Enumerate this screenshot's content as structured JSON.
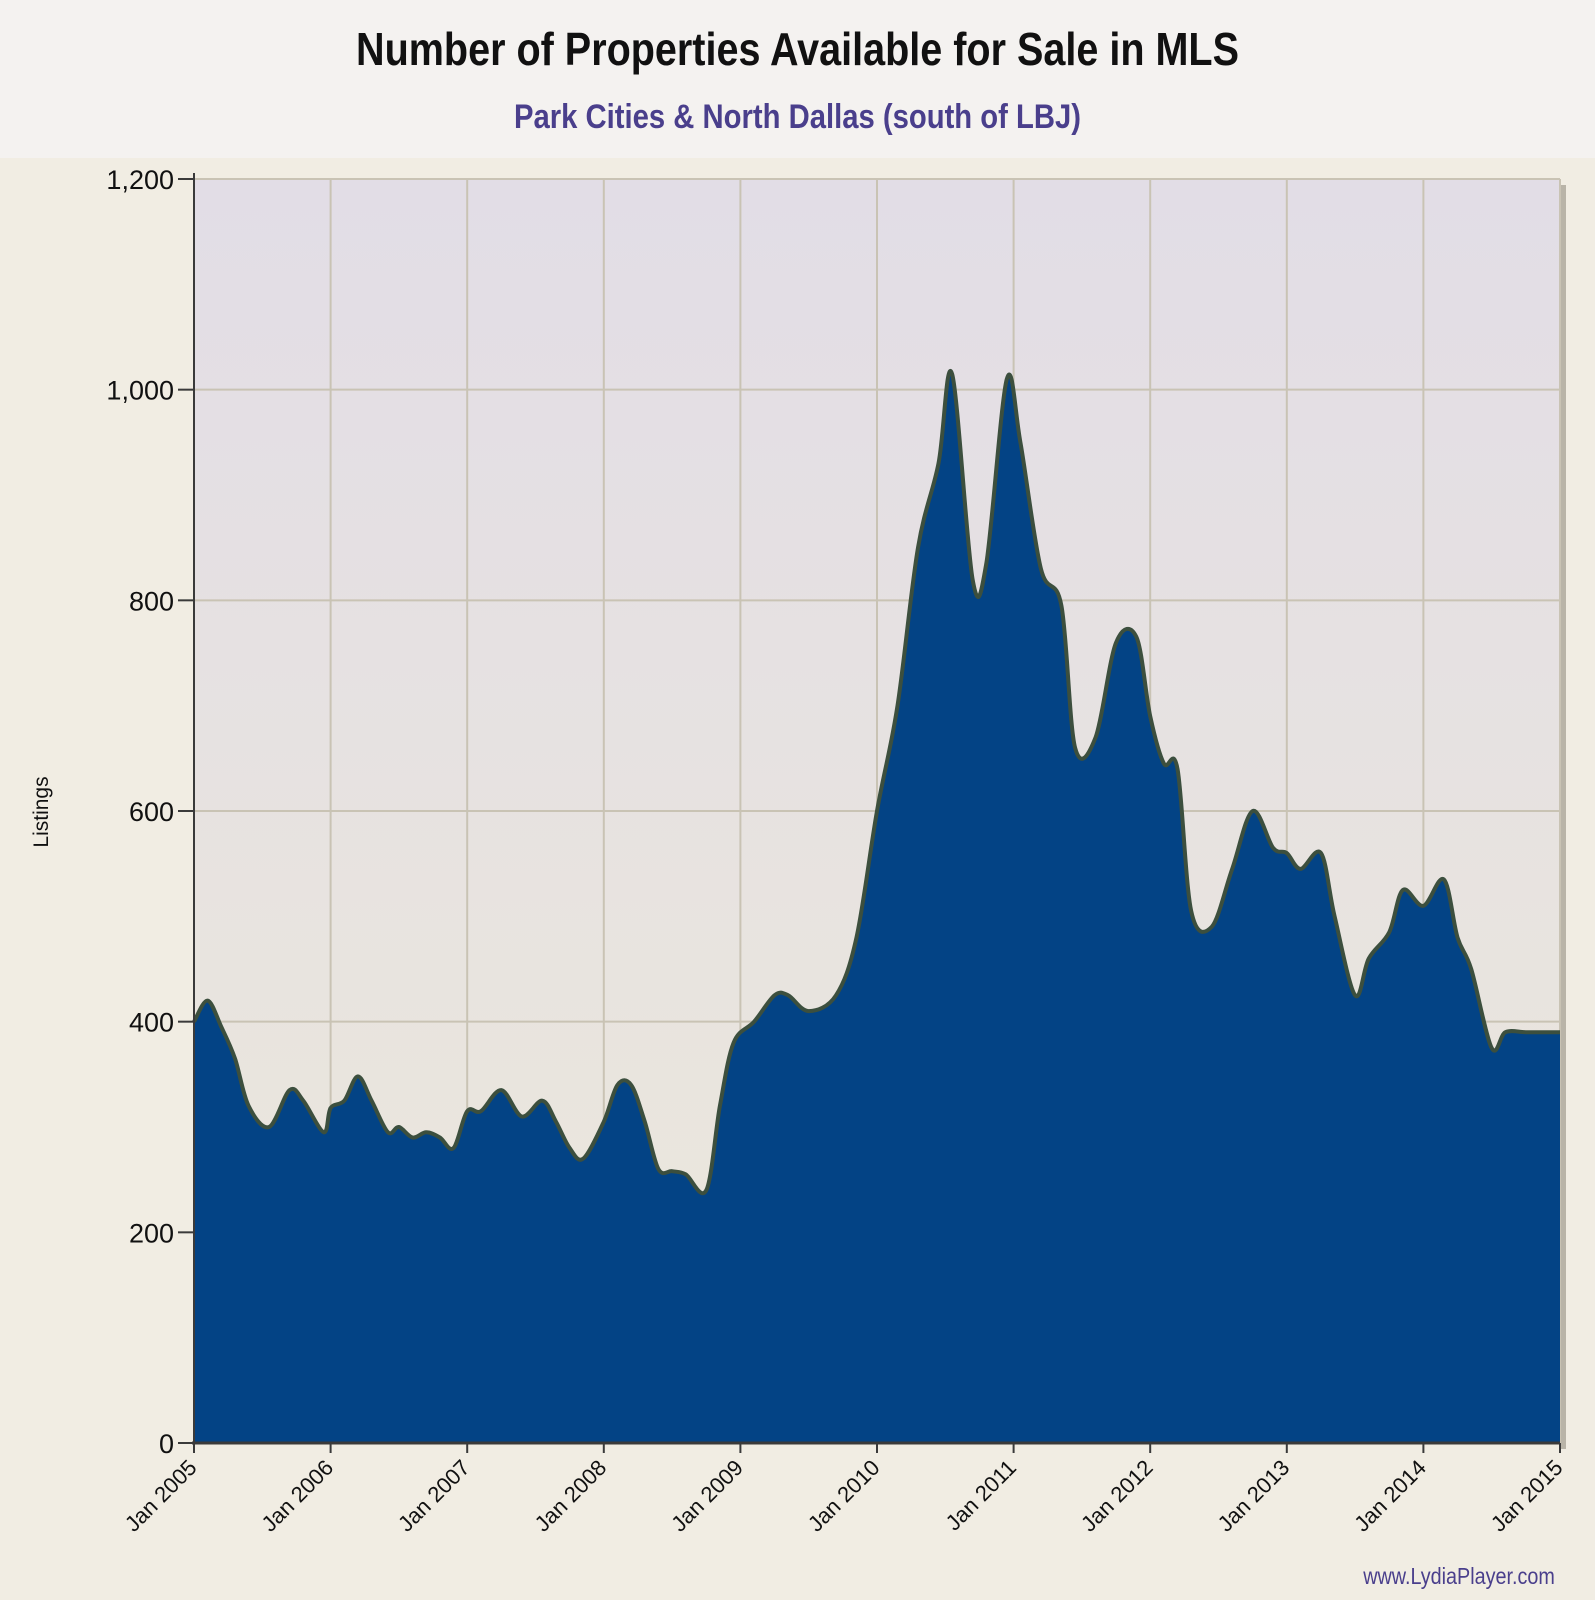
{
  "chart_data": {
    "type": "area",
    "title": "Number of Properties Available for Sale in MLS",
    "subtitle": "Park Cities & North Dallas (south of LBJ)",
    "ylabel": "Listings",
    "xlabel": "",
    "ylim": [
      0,
      1200
    ],
    "xlim": [
      2005.0,
      2015.0
    ],
    "y_ticks": [
      0,
      200,
      400,
      600,
      800,
      1000,
      1200
    ],
    "y_tick_labels": [
      "0",
      "200",
      "400",
      "600",
      "800",
      "1,000",
      "1,200"
    ],
    "x_tick_labels": [
      "Jan 2005",
      "Jan 2006",
      "Jan 2007",
      "Jan 2008",
      "Jan 2009",
      "Jan 2010",
      "Jan 2011",
      "Jan 2012",
      "Jan 2013",
      "Jan 2014",
      "Jan 2015"
    ],
    "x_tick_values": [
      2005,
      2006,
      2007,
      2008,
      2009,
      2010,
      2011,
      2012,
      2013,
      2014,
      2015
    ],
    "grid": true,
    "legend": "none",
    "colors": {
      "fill": "#034385",
      "line": "#3c4f3e",
      "plot_bg_top": "#e2dde6",
      "plot_bg_bottom": "#ece8db",
      "grid": "#c9c3b4"
    },
    "x": [
      2005.0,
      2005.1,
      2005.2,
      2005.3,
      2005.4,
      2005.55,
      2005.7,
      2005.8,
      2005.95,
      2006.0,
      2006.1,
      2006.2,
      2006.3,
      2006.42,
      2006.5,
      2006.6,
      2006.7,
      2006.8,
      2006.9,
      2007.0,
      2007.1,
      2007.25,
      2007.4,
      2007.55,
      2007.65,
      2007.75,
      2007.85,
      2008.0,
      2008.1,
      2008.2,
      2008.3,
      2008.4,
      2008.5,
      2008.6,
      2008.75,
      2008.85,
      2008.95,
      2009.1,
      2009.25,
      2009.35,
      2009.5,
      2009.7,
      2009.85,
      2010.0,
      2010.15,
      2010.3,
      2010.45,
      2010.55,
      2010.7,
      2010.8,
      2010.95,
      2011.05,
      2011.2,
      2011.35,
      2011.45,
      2011.6,
      2011.75,
      2011.9,
      2012.0,
      2012.1,
      2012.2,
      2012.3,
      2012.45,
      2012.6,
      2012.75,
      2012.9,
      2013.0,
      2013.1,
      2013.25,
      2013.35,
      2013.5,
      2013.6,
      2013.75,
      2013.85,
      2014.0,
      2014.15,
      2014.25,
      2014.35,
      2014.5,
      2014.6,
      2014.75,
      2014.9,
      2015.0
    ],
    "values": [
      400,
      420,
      395,
      365,
      320,
      300,
      335,
      325,
      295,
      318,
      325,
      348,
      325,
      295,
      300,
      290,
      295,
      290,
      280,
      315,
      315,
      335,
      310,
      325,
      305,
      280,
      270,
      305,
      340,
      340,
      305,
      260,
      258,
      255,
      240,
      320,
      380,
      400,
      425,
      425,
      410,
      425,
      480,
      600,
      700,
      850,
      930,
      1015,
      820,
      835,
      1010,
      950,
      830,
      795,
      660,
      670,
      760,
      765,
      690,
      645,
      640,
      505,
      490,
      545,
      600,
      565,
      560,
      545,
      560,
      500,
      425,
      460,
      485,
      525,
      510,
      535,
      480,
      450,
      375,
      390,
      390,
      390,
      390
    ]
  },
  "watermark": "www.LydiaPlayer.com"
}
